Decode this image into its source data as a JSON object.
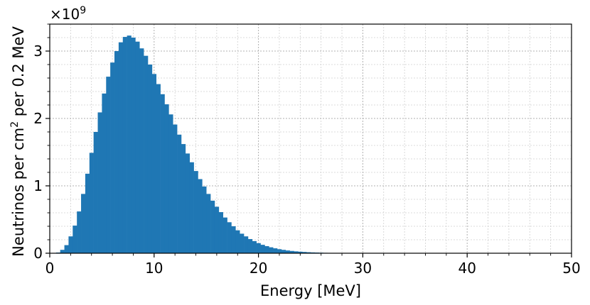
{
  "chart_data": {
    "type": "bar",
    "title": "",
    "xlabel": "Energy [MeV]",
    "ylabel_main": "Neutrinos per cm",
    "ylabel_sup": "2",
    "ylabel_tail": " per 0.2 MeV",
    "offset_text_base": "×10",
    "offset_text_exp": "9",
    "y_scale_factor": 1000000000,
    "xlim": [
      0,
      50
    ],
    "ylim": [
      0,
      3.4
    ],
    "x_ticks": [
      0,
      10,
      20,
      30,
      40,
      50
    ],
    "x_tick_labels": [
      "0",
      "10",
      "20",
      "30",
      "40",
      "50"
    ],
    "y_ticks": [
      0,
      1,
      2,
      3
    ],
    "y_tick_labels": [
      "0",
      "1",
      "2",
      "3"
    ],
    "x_minor_step": 2,
    "y_minor_step": 0.2,
    "grid": true,
    "bin_width": 0.2,
    "color": "#1f77b4",
    "bins_x": [
      0.6,
      1.0,
      1.4,
      1.8,
      2.2,
      2.6,
      3.0,
      3.4,
      3.8,
      4.2,
      4.6,
      5.0,
      5.4,
      5.8,
      6.2,
      6.6,
      7.0,
      7.4,
      7.8,
      8.2,
      8.6,
      9.0,
      9.4,
      9.8,
      10.2,
      10.6,
      11.0,
      11.4,
      11.8,
      12.2,
      12.6,
      13.0,
      13.4,
      13.8,
      14.2,
      14.6,
      15.0,
      15.4,
      15.8,
      16.2,
      16.6,
      17.0,
      17.4,
      17.8,
      18.2,
      18.6,
      19.0,
      19.4,
      19.8,
      20.2,
      20.6,
      21.0,
      21.4,
      21.8,
      22.2,
      22.6,
      23.0,
      23.4,
      23.8,
      24.2,
      24.6,
      25.0,
      25.4,
      25.8,
      26.2,
      26.6,
      27.0,
      27.4,
      27.8,
      28.2,
      28.6,
      29.0,
      29.4,
      29.8,
      30.2,
      30.6,
      31.0,
      31.4,
      31.8,
      32.2
    ],
    "values": [
      0.01,
      0.05,
      0.12,
      0.25,
      0.41,
      0.62,
      0.88,
      1.18,
      1.49,
      1.8,
      2.09,
      2.37,
      2.62,
      2.83,
      3.0,
      3.13,
      3.21,
      3.23,
      3.2,
      3.14,
      3.04,
      2.93,
      2.8,
      2.66,
      2.51,
      2.36,
      2.21,
      2.06,
      1.91,
      1.76,
      1.62,
      1.48,
      1.35,
      1.22,
      1.1,
      0.99,
      0.88,
      0.78,
      0.69,
      0.61,
      0.53,
      0.46,
      0.4,
      0.34,
      0.29,
      0.25,
      0.21,
      0.18,
      0.15,
      0.125,
      0.105,
      0.088,
      0.073,
      0.06,
      0.05,
      0.041,
      0.034,
      0.028,
      0.023,
      0.019,
      0.015,
      0.012,
      0.01,
      0.008,
      0.006,
      0.005,
      0.004,
      0.003,
      0.0025,
      0.002,
      0.0015,
      0.0012,
      0.001,
      0.0008,
      0.0006,
      0.0005,
      0.0004,
      0.0003,
      0.0002,
      0.0001
    ]
  }
}
